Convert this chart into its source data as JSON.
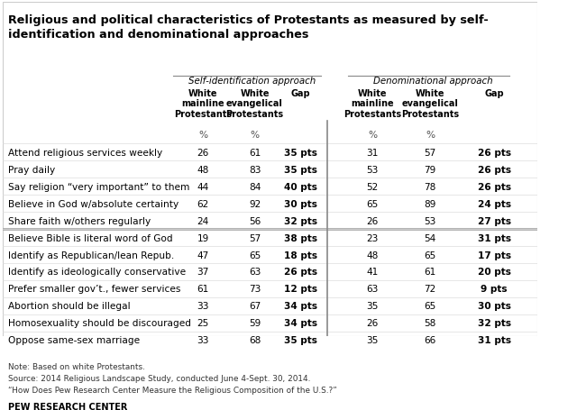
{
  "title": "Religious and political characteristics of Protestants as measured by self-\nidentification and denominational approaches",
  "col_headers": {
    "self_id": "Self-identification approach",
    "denom": "Denominational approach"
  },
  "rows": [
    [
      "Attend religious services weekly",
      26,
      61,
      "35 pts",
      31,
      57,
      "26 pts"
    ],
    [
      "Pray daily",
      48,
      83,
      "35 pts",
      53,
      79,
      "26 pts"
    ],
    [
      "Say religion “very important” to them",
      44,
      84,
      "40 pts",
      52,
      78,
      "26 pts"
    ],
    [
      "Believe in God w/absolute certainty",
      62,
      92,
      "30 pts",
      65,
      89,
      "24 pts"
    ],
    [
      "Share faith w/others regularly",
      24,
      56,
      "32 pts",
      26,
      53,
      "27 pts"
    ],
    [
      "Believe Bible is literal word of God",
      19,
      57,
      "38 pts",
      23,
      54,
      "31 pts"
    ],
    [
      "Identify as Republican/lean Repub.",
      47,
      65,
      "18 pts",
      48,
      65,
      "17 pts"
    ],
    [
      "Identify as ideologically conservative",
      37,
      63,
      "26 pts",
      41,
      61,
      "20 pts"
    ],
    [
      "Prefer smaller gov’t., fewer services",
      61,
      73,
      "12 pts",
      63,
      72,
      "9 pts"
    ],
    [
      "Abortion should be illegal",
      33,
      67,
      "34 pts",
      35,
      65,
      "30 pts"
    ],
    [
      "Homosexuality should be discouraged",
      25,
      59,
      "34 pts",
      26,
      58,
      "32 pts"
    ],
    [
      "Oppose same-sex marriage",
      33,
      68,
      "35 pts",
      35,
      66,
      "31 pts"
    ]
  ],
  "separator_after_row": 5,
  "note_lines": [
    "Note: Based on white Protestants.",
    "Source: 2014 Religious Landscape Study, conducted June 4-Sept. 30, 2014.",
    "“How Does Pew Research Center Measure the Religious Composition of the U.S.?”"
  ],
  "footer": "PEW RESEARCH CENTER",
  "bg_color": "#ffffff",
  "separator_color": "#cccccc",
  "vertical_line_color": "#888888",
  "text_color": "#000000"
}
